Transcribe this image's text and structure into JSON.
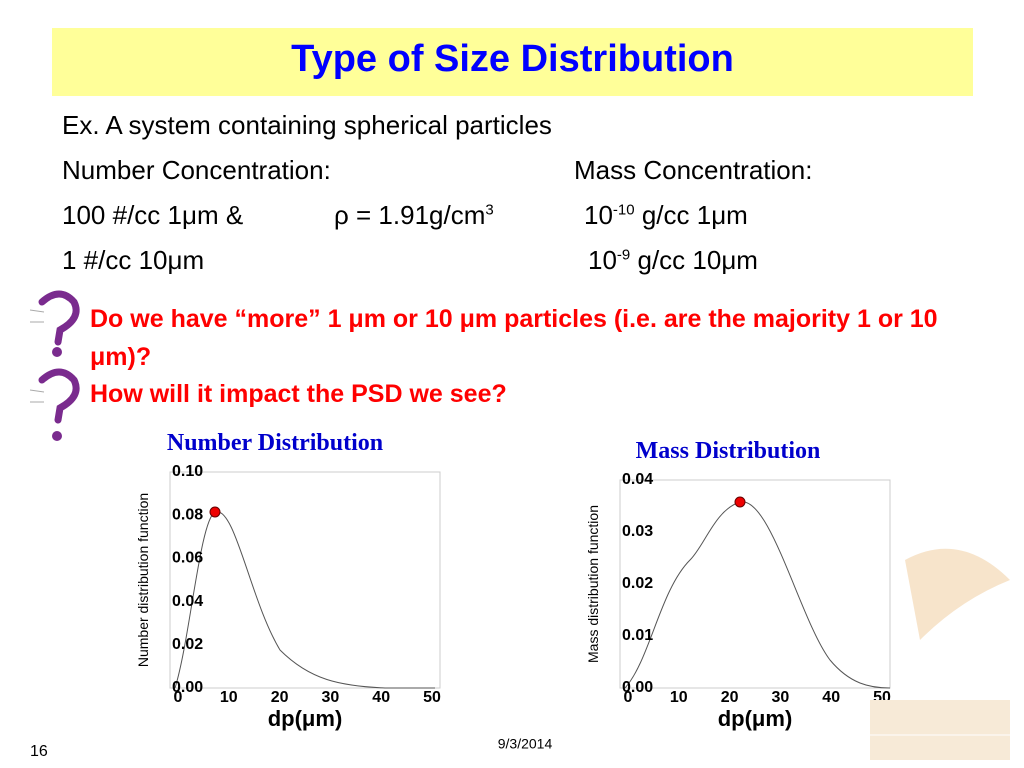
{
  "title": "Type of Size Distribution",
  "intro": "Ex.  A system containing spherical particles",
  "number_heading": "Number Concentration:",
  "mass_heading": "Mass Concentration:",
  "number_line1": "100 #/cc 1μm &",
  "density": {
    "text": "ρ = 1.91g/cm",
    "sup": "3"
  },
  "mass_line1": {
    "base": "10",
    "sup": "-10",
    "rest": " g/cc 1μm"
  },
  "number_line2": "1 #/cc 10μm",
  "mass_line2": {
    "base": "10",
    "sup": "-9",
    "rest": " g/cc 10μm"
  },
  "questions": [
    "Do we have “more” 1 μm or 10 μm particles (i.e. are the majority 1 or 10 μm)?",
    "How will it impact the PSD we see?"
  ],
  "plots": [
    {
      "title": "Number Distribution",
      "ylabel": "Number distribution function",
      "xlabel": "dp(μm)",
      "yticks": [
        "0.00",
        "0.02",
        "0.04",
        "0.06",
        "0.08",
        "0.10"
      ],
      "xticks": [
        "0",
        "10",
        "20",
        "30",
        "40",
        "50"
      ]
    },
    {
      "title": "Mass Distribution",
      "ylabel": "Mass distribution function",
      "xlabel": "dp(μm)",
      "yticks": [
        "0.00",
        "0.01",
        "0.02",
        "0.03",
        "0.04"
      ],
      "xticks": [
        "0",
        "10",
        "20",
        "30",
        "40",
        "50"
      ]
    }
  ],
  "footer": {
    "page": "16",
    "date": "9/3/2014"
  }
}
